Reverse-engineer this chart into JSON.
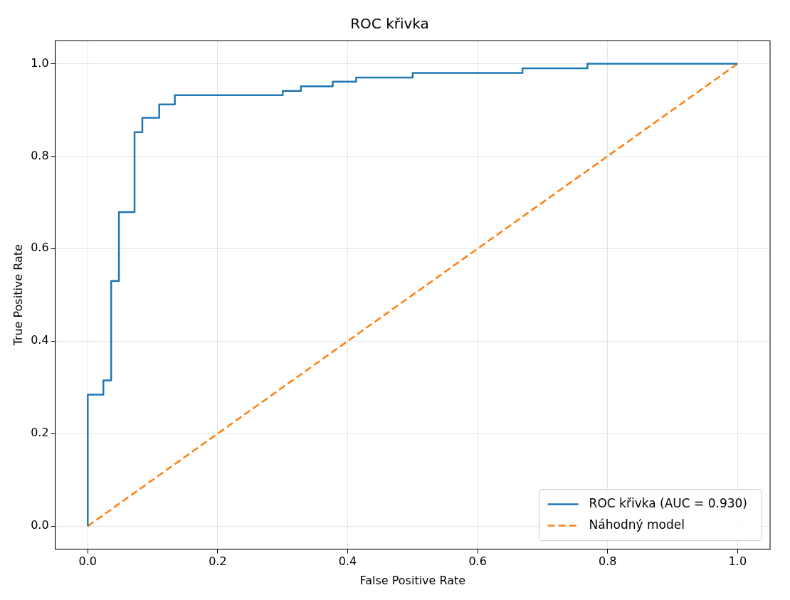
{
  "chart_data": {
    "type": "line",
    "title": "ROC křivka",
    "xlabel": "False Positive Rate",
    "ylabel": "True Positive Rate",
    "xlim": [
      -0.05,
      1.05
    ],
    "ylim": [
      -0.05,
      1.05
    ],
    "xticks": [
      {
        "value": 0,
        "label": "0.0"
      },
      {
        "value": 0.2,
        "label": "0.2"
      },
      {
        "value": 0.4,
        "label": "0.4"
      },
      {
        "value": 0.6,
        "label": "0.6"
      },
      {
        "value": 0.8,
        "label": "0.8"
      },
      {
        "value": 1,
        "label": "1.0"
      }
    ],
    "yticks": [
      {
        "value": 0,
        "label": "0.0"
      },
      {
        "value": 0.2,
        "label": "0.2"
      },
      {
        "value": 0.4,
        "label": "0.4"
      },
      {
        "value": 0.6,
        "label": "0.6"
      },
      {
        "value": 0.8,
        "label": "0.8"
      },
      {
        "value": 1,
        "label": "1.0"
      }
    ],
    "grid": true,
    "legend": "bottom right",
    "series": [
      {
        "name": "ROC křivka (AUC = 0.930)",
        "type": "step",
        "color": "#1f77b4",
        "line_style": "solid",
        "x": [
          0,
          0,
          0.024,
          0.036,
          0.048,
          0.072,
          0.084,
          0.11,
          0.134,
          0.3,
          0.328,
          0.377,
          0.413,
          0.5,
          0.669,
          0.769,
          1
        ],
        "values": [
          0,
          0.284,
          0.315,
          0.53,
          0.679,
          0.852,
          0.883,
          0.912,
          0.932,
          0.941,
          0.951,
          0.961,
          0.97,
          0.98,
          0.99,
          1,
          1
        ]
      },
      {
        "name": "Náhodný model",
        "color": "#ff7f0e",
        "line_style": "dashed",
        "x": [
          0,
          1
        ],
        "values": [
          0,
          1
        ]
      }
    ]
  }
}
